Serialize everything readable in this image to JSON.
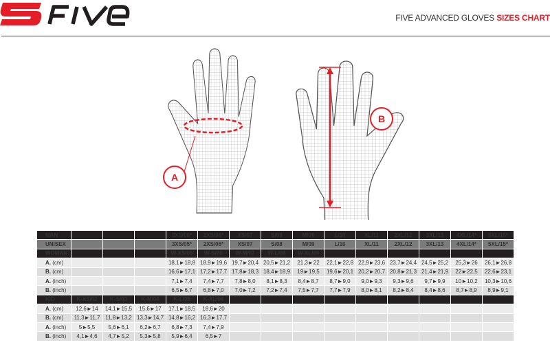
{
  "brand": {
    "logo_text": "5FIVE",
    "accent_color": "#e41e26"
  },
  "header": {
    "title_prefix": "FIVE ADVANCED GLOVES ",
    "title_highlight": "SIZES CHART"
  },
  "illustration": {
    "marker_a": "A",
    "marker_b": "B"
  },
  "table": {
    "rows": [
      {
        "type": "hdr-dark",
        "label": "MAN",
        "label_red": true,
        "cells": [
          "",
          "",
          "",
          "3XS/05*",
          "2XS/06*",
          "XS/07",
          "S/08",
          "M/09",
          "L/10",
          "XL/11",
          "2XL/12",
          "3XL/13",
          "4XL/14*",
          "5XL/15*"
        ]
      },
      {
        "type": "hdr-gray",
        "label": "UNISEX",
        "label_red": false,
        "cells": [
          "",
          "",
          "",
          "3XS/05*",
          "2XS/06*",
          "XS/07",
          "S/08",
          "M/09",
          "L/10",
          "XL/11",
          "2XL/12",
          "3XL/13",
          "4XL/14*",
          "5XL/15*"
        ]
      },
      {
        "type": "hdr-dark",
        "label": "WOMAN",
        "label_red": true,
        "cells": [
          "",
          "",
          "",
          "W-XS/05",
          "W-S/06",
          "W-M/07",
          "W-L/08",
          "W-XL/09",
          "",
          "",
          "",
          "",
          "",
          ""
        ]
      },
      {
        "type": "d1",
        "label_bold": "A.",
        "label": "(cm)",
        "cells": [
          "",
          "",
          "",
          "18,1►18,8",
          "18,9►19,6",
          "19,7►20,4",
          "20,5►21,2",
          "21,3►22",
          "22,1►22,8",
          "22,9►23,6",
          "23,7►24,4",
          "24,5►25,2",
          "25,3►26",
          "26,1►26,8"
        ]
      },
      {
        "type": "d2",
        "label_bold": "B.",
        "label": "(cm)",
        "cells": [
          "",
          "",
          "",
          "16,6►17,1",
          "17,2►17,7",
          "17,8►18,3",
          "18,4►18,9",
          "19►19,5",
          "19,6►20,1",
          "20,2►20,7",
          "20,8►21,3",
          "21,4►21,9",
          "22►22,5",
          "22,6►23,1"
        ]
      },
      {
        "type": "d1",
        "label_bold": "A.",
        "label": "(inch)",
        "cells": [
          "",
          "",
          "",
          "7,1►7,4",
          "7,4►7,7",
          "7,8►8,0",
          "8,1►8,3",
          "8,4►8,7",
          "8,7►9,0",
          "9,0►9,3",
          "9,3►9,6",
          "9,7►9,9",
          "10►10,2",
          "10,3►10,6"
        ]
      },
      {
        "type": "d2",
        "label_bold": "B.",
        "label": "(inch)",
        "cells": [
          "",
          "",
          "",
          "6,5►6,7",
          "6,8►7,0",
          "7,0►7,2",
          "7,2►7,4",
          "7,5►7,7",
          "7,7►7,9",
          "8,0►8,1",
          "8,2►8,4",
          "8,4►8,6",
          "8,7►8,9",
          "8,9►9,1"
        ]
      },
      {
        "type": "hdr-dark",
        "label": "KID",
        "label_red": true,
        "cells": [
          "K-XS/02",
          "K-S/03",
          "K-M/04",
          "K-L/05",
          "K-XL/06",
          "",
          "",
          "",
          "",
          "",
          "",
          "",
          "",
          ""
        ]
      },
      {
        "type": "d1",
        "label_bold": "A.",
        "label": "(cm)",
        "cells": [
          "12,6►14",
          "14,1►15,5",
          "15,6►17",
          "17,1►18,5",
          "18,6►20",
          "",
          "",
          "",
          "",
          "",
          "",
          "",
          "",
          ""
        ]
      },
      {
        "type": "d2",
        "label_bold": "B.",
        "label": "(cm)",
        "cells": [
          "11,3►11,7",
          "11,8►13,2",
          "13,3►14,7",
          "14,8►16,2",
          "16,3►17,7",
          "",
          "",
          "",
          "",
          "",
          "",
          "",
          "",
          ""
        ]
      },
      {
        "type": "d1",
        "label_bold": "A.",
        "label": "(inch)",
        "cells": [
          "5►5,5",
          "5,6►6,1",
          "6,2►6,7",
          "6,8►7,3",
          "7,4►7,9",
          "",
          "",
          "",
          "",
          "",
          "",
          "",
          "",
          ""
        ]
      },
      {
        "type": "d2",
        "label_bold": "B.",
        "label": "(inch)",
        "cells": [
          "4,1►4,6",
          "4,7►5,2",
          "5,3►5,8",
          "5,9►6,4",
          "6,5►7",
          "",
          "",
          "",
          "",
          "",
          "",
          "",
          "",
          ""
        ]
      }
    ]
  }
}
